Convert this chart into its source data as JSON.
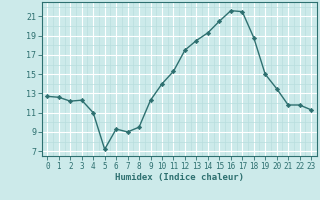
{
  "x_values": [
    0,
    1,
    2,
    3,
    4,
    5,
    6,
    7,
    8,
    9,
    10,
    11,
    12,
    13,
    14,
    15,
    16,
    17,
    18,
    19,
    20,
    21,
    22,
    23
  ],
  "y_values": [
    12.7,
    12.6,
    12.2,
    12.3,
    11.0,
    7.2,
    9.3,
    9.0,
    9.5,
    12.3,
    14.0,
    15.3,
    17.5,
    18.5,
    19.3,
    20.5,
    21.6,
    21.5,
    18.8,
    15.0,
    13.5,
    11.8,
    11.8,
    11.3
  ],
  "xlabel": "Humidex (Indice chaleur)",
  "xlim": [
    -0.5,
    23.5
  ],
  "ylim": [
    6.5,
    22.5
  ],
  "yticks": [
    7,
    9,
    11,
    13,
    15,
    17,
    19,
    21
  ],
  "xticks": [
    0,
    1,
    2,
    3,
    4,
    5,
    6,
    7,
    8,
    9,
    10,
    11,
    12,
    13,
    14,
    15,
    16,
    17,
    18,
    19,
    20,
    21,
    22,
    23
  ],
  "line_color": "#2e7070",
  "marker_color": "#2e7070",
  "bg_color": "#cceaea",
  "grid_major_color": "#ffffff",
  "grid_minor_color": "#b8dede",
  "tick_label_color": "#2e7070",
  "xlabel_color": "#2e7070"
}
